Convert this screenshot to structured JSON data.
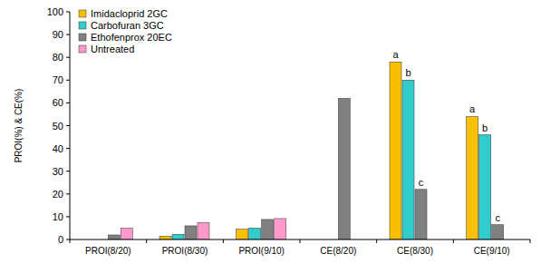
{
  "chart_data": {
    "type": "bar",
    "y_label": "PROI(%) & CE(%)",
    "categories": [
      "PROI(8/20)",
      "PROI(8/30)",
      "PROI(9/10)",
      "CE(8/20)",
      "CE(8/30)",
      "CE(9/10)"
    ],
    "series": [
      {
        "name": "Imidacloprid 2GC",
        "color": "#f8c000",
        "values": [
          0,
          1.5,
          4.5,
          0,
          78,
          54
        ]
      },
      {
        "name": "Carbofuran 3GC",
        "color": "#33cccc",
        "values": [
          0,
          2.3,
          5,
          0,
          70,
          46
        ]
      },
      {
        "name": "Ethofenprox 20EC",
        "color": "#808080",
        "values": [
          2,
          6,
          8.8,
          62,
          22,
          6.5
        ]
      },
      {
        "name": "Untreated",
        "color": "#ff99cc",
        "values": [
          5,
          7.5,
          9.2,
          null,
          null,
          null
        ]
      }
    ],
    "annotations": [
      {
        "series": 0,
        "index": 4,
        "text": "a"
      },
      {
        "series": 1,
        "index": 4,
        "text": "b"
      },
      {
        "series": 2,
        "index": 4,
        "text": "c"
      },
      {
        "series": 0,
        "index": 5,
        "text": "a"
      },
      {
        "series": 1,
        "index": 5,
        "text": "b"
      },
      {
        "series": 2,
        "index": 5,
        "text": "c"
      }
    ],
    "ylim": [
      0,
      100
    ],
    "yticks": [
      0,
      10,
      20,
      30,
      40,
      50,
      60,
      70,
      80,
      90,
      100
    ],
    "grid": false,
    "legend": "upper left"
  }
}
